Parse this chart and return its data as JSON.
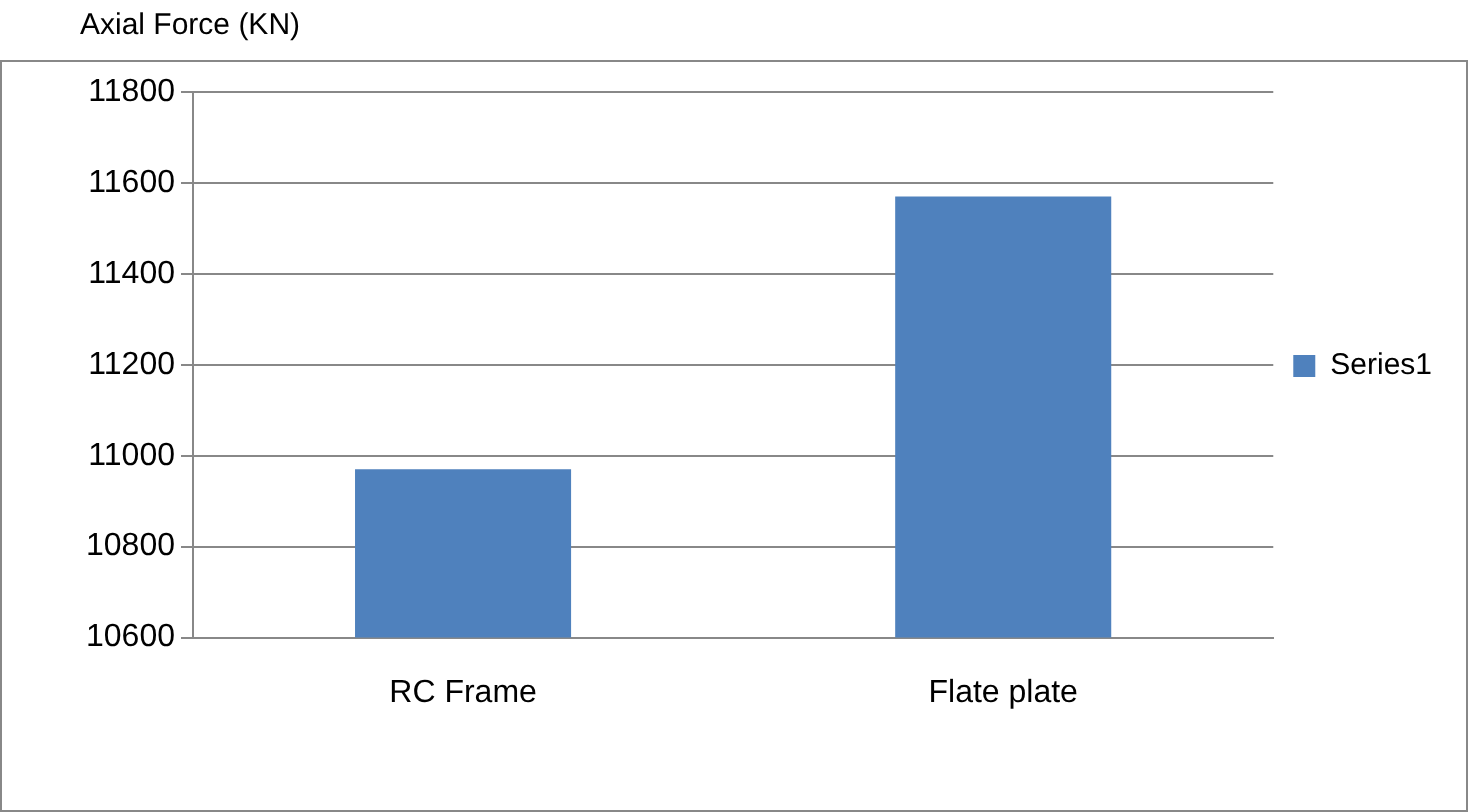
{
  "chart_data": {
    "type": "bar",
    "title": "Axial Force (KN)",
    "categories": [
      "RC Frame",
      "Flate plate"
    ],
    "series": [
      {
        "name": "Series1",
        "color": "#4f81bd",
        "values": [
          10970,
          11570
        ]
      }
    ],
    "ylim": [
      10600,
      11800
    ],
    "yticks": [
      10600,
      10800,
      11000,
      11200,
      11400,
      11600,
      11800
    ],
    "grid": "y",
    "legend": "right"
  }
}
